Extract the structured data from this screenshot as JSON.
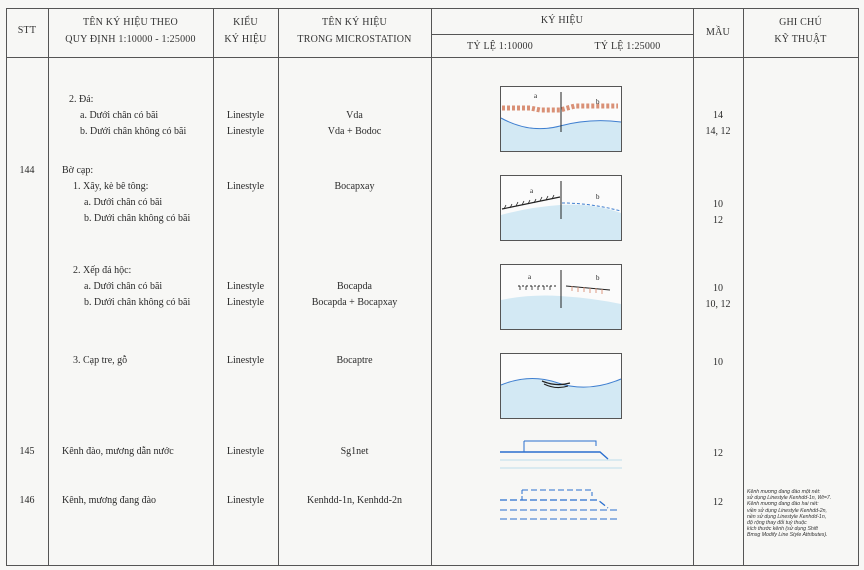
{
  "header": {
    "stt": "STT",
    "name_line1": "TÊN KÝ HIỆU THEO",
    "name_line2": "QUY ĐỊNH 1:10000 - 1:25000",
    "type_line1": "KIỂU",
    "type_line2": "KÝ HIỆU",
    "ms_line1": "TÊN KÝ HIỆU",
    "ms_line2": "TRONG MICROSTATION",
    "symbol": "KÝ HIỆU",
    "scale1": "TỶ LỆ 1:10000",
    "scale2": "TỶ LỆ 1:25000",
    "color": "MẦU",
    "note_line1": "GHI CHÚ",
    "note_line2": "KỸ THUẬT"
  },
  "rows": {
    "da_title": "2. Đá:",
    "da_a": "a. Dưới chân có bãi",
    "da_b": "b. Dưới chân không có bãi",
    "da_a_type": "Linestyle",
    "da_b_type": "Linestyle",
    "da_a_ms": "Vda",
    "da_b_ms": "Vda + Bodoc",
    "da_a_color": "14",
    "da_b_color": "14, 12",
    "stt_144": "144",
    "bocap_title": "Bờ cạp:",
    "xay_title": "1. Xây, kè bê tông:",
    "xay_a": "a. Dưới chân có bãi",
    "xay_b": "b. Dưới chân không có bãi",
    "xay_type": "Linestyle",
    "xay_ms": "Bocapxay",
    "xay_a_color": "10",
    "xay_b_color": "12",
    "xep_title": "2. Xếp đá hộc:",
    "xep_a": "a. Dưới chân có bãi",
    "xep_b": "b. Dưới chân không có bãi",
    "xep_a_type": "Linestyle",
    "xep_b_type": "Linestyle",
    "xep_a_ms": "Bocapda",
    "xep_b_ms": "Bocapda + Bocapxay",
    "xep_a_color": "10",
    "xep_b_color": "10, 12",
    "tre_title": "3. Cạp tre, gỗ",
    "tre_type": "Linestyle",
    "tre_ms": "Bocaptre",
    "tre_color": "10",
    "stt_145": "145",
    "kenh_name": "Kênh đào, mương dẫn nước",
    "kenh_type": "Linestyle",
    "kenh_ms": "Sg1net",
    "kenh_color": "12",
    "stt_146": "146",
    "kenhdd_name": "Kênh, mương đang đào",
    "kenhdd_type": "Linestyle",
    "kenhdd_ms": "Kenhdd-1n, Kenhdd-2n",
    "kenhdd_color": "12",
    "kenhdd_note": [
      "Kênh mương đang đào một nét:",
      "sử dụng Linestyle Kenhdd-1n, Wt=7.",
      "Kênh mương đang đào hai nét:",
      "viền sử dụng Linestyle Kenhdd-2n,",
      "nền sử dụng Linestyle Kenhdd-1n,",
      "độ rộng thay đổi tuỳ thuộc",
      "kích thước kênh (sử dụng Shift",
      "Bmsg Modify Line Style Attributes)."
    ]
  },
  "symbol_labels": {
    "a": "a",
    "b": "b"
  },
  "colors": {
    "line": "#555555",
    "water": "#cfe6f2",
    "blue": "#2a6fcf",
    "pink": "#e8a58c",
    "dark": "#222222"
  }
}
